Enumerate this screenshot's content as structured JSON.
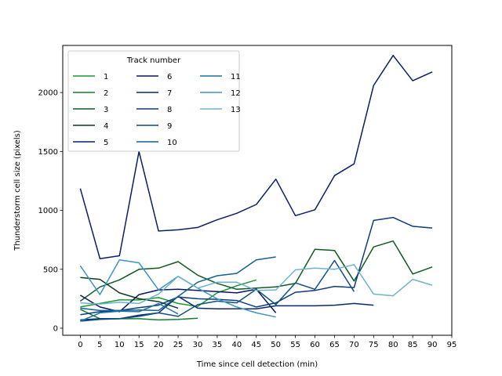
{
  "chart_data": {
    "type": "line",
    "xlabel": "Time since cell detection (min)",
    "ylabel": "Thunderstorm cell size (pixels)",
    "xlim": [
      -4.5,
      95
    ],
    "ylim": [
      -60,
      2400
    ],
    "xticks": [
      0,
      5,
      10,
      15,
      20,
      25,
      30,
      35,
      40,
      45,
      50,
      55,
      60,
      65,
      70,
      75,
      80,
      85,
      90,
      95
    ],
    "yticks": [
      0,
      500,
      1000,
      1500,
      2000
    ],
    "grid": false,
    "legend": {
      "title": "Track number",
      "placement": "upper-left",
      "columns": 3
    },
    "series": [
      {
        "name": "1",
        "color": "#1a9a2e",
        "x": [
          0,
          5,
          10,
          15,
          20,
          25,
          30,
          35,
          40,
          45
        ],
        "y": [
          180,
          210,
          240,
          240,
          260,
          210,
          185,
          300,
          360,
          410
        ]
      },
      {
        "name": "2",
        "color": "#137f2c",
        "x": [
          0,
          5,
          10,
          15,
          20,
          25,
          30
        ],
        "y": [
          160,
          80,
          80,
          80,
          70,
          75,
          85
        ]
      },
      {
        "name": "3",
        "color": "#0f5a22",
        "x": [
          0,
          5,
          10,
          15,
          20,
          25,
          30,
          35,
          40,
          45,
          50,
          55,
          60,
          65,
          70,
          75,
          80,
          85,
          90
        ],
        "y": [
          230,
          350,
          410,
          500,
          510,
          565,
          450,
          380,
          330,
          340,
          350,
          380,
          670,
          660,
          400,
          690,
          740,
          460,
          520
        ]
      },
      {
        "name": "4",
        "color": "#0b3d1f",
        "x": [
          0,
          5,
          10,
          15,
          20,
          25
        ],
        "y": [
          430,
          415,
          300,
          250,
          225,
          170
        ]
      },
      {
        "name": "5",
        "color": "#0a1f66",
        "x": [
          0,
          5,
          10,
          15,
          20,
          25,
          30,
          35,
          40,
          45,
          50,
          55,
          60,
          65,
          70,
          75,
          80,
          85,
          90
        ],
        "y": [
          1185,
          590,
          615,
          1500,
          825,
          835,
          855,
          920,
          975,
          1050,
          1265,
          955,
          1005,
          1295,
          1395,
          2060,
          2315,
          2100,
          2175
        ]
      },
      {
        "name": "6",
        "color": "#0a1660",
        "x": [
          0,
          5,
          10,
          15,
          20,
          25,
          30,
          35,
          40,
          45,
          50
        ],
        "y": [
          280,
          180,
          140,
          285,
          325,
          330,
          320,
          310,
          300,
          330,
          130
        ]
      },
      {
        "name": "7",
        "color": "#0c2670",
        "x": [
          0,
          5,
          10,
          15,
          20,
          25,
          30,
          35,
          40,
          45,
          50,
          55,
          60,
          65,
          70,
          75
        ],
        "y": [
          70,
          80,
          80,
          110,
          130,
          270,
          170,
          165,
          165,
          165,
          190,
          190,
          190,
          195,
          210,
          195
        ]
      },
      {
        "name": "8",
        "color": "#0e3a7e",
        "x": [
          0,
          5,
          10,
          15,
          20,
          25,
          30,
          35,
          40,
          45,
          50,
          55,
          60,
          65,
          70,
          75,
          80,
          85,
          90
        ],
        "y": [
          115,
          140,
          150,
          175,
          195,
          265,
          250,
          245,
          235,
          180,
          215,
          305,
          320,
          355,
          345,
          915,
          940,
          865,
          850
        ]
      },
      {
        "name": "9",
        "color": "#0f4f84",
        "x": [
          0,
          5,
          10,
          15,
          20,
          25,
          30,
          35,
          40,
          45,
          50,
          55,
          60,
          65,
          70
        ],
        "y": [
          60,
          75,
          80,
          100,
          130,
          100,
          200,
          230,
          215,
          330,
          200,
          385,
          330,
          575,
          310
        ]
      },
      {
        "name": "10",
        "color": "#12618e",
        "x": [
          0,
          5,
          10,
          15,
          20,
          25,
          30,
          35,
          40,
          45,
          50
        ],
        "y": [
          170,
          150,
          150,
          155,
          150,
          270,
          390,
          445,
          465,
          580,
          605
        ]
      },
      {
        "name": "11",
        "color": "#1a73a4",
        "x": [
          0,
          5,
          10,
          15,
          20,
          25
        ],
        "y": [
          60,
          130,
          145,
          140,
          210,
          120
        ]
      },
      {
        "name": "12",
        "color": "#3d96c2",
        "x": [
          0,
          5,
          10,
          15,
          20,
          25,
          30,
          35,
          40,
          45,
          50
        ],
        "y": [
          530,
          285,
          580,
          555,
          325,
          440,
          340,
          250,
          180,
          130,
          95
        ]
      },
      {
        "name": "13",
        "color": "#6db3cf",
        "x": [
          0,
          5,
          10,
          15,
          20,
          25,
          30,
          35,
          40,
          45,
          50,
          55,
          60,
          65,
          70,
          75,
          80,
          85,
          90
        ],
        "y": [
          215,
          205,
          220,
          210,
          290,
          440,
          340,
          390,
          390,
          320,
          325,
          495,
          510,
          500,
          540,
          290,
          275,
          415,
          365
        ]
      }
    ]
  }
}
